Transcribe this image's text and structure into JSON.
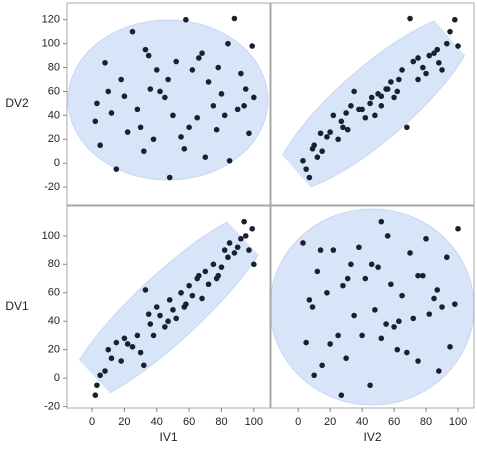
{
  "chart_data": [
    {
      "type": "scatter",
      "y_label": "DV2",
      "x": [
        3,
        5,
        8,
        10,
        12,
        15,
        18,
        20,
        22,
        25,
        28,
        30,
        32,
        35,
        36,
        38,
        40,
        42,
        45,
        48,
        50,
        52,
        55,
        58,
        60,
        62,
        65,
        68,
        70,
        72,
        75,
        78,
        80,
        82,
        84,
        85,
        88,
        90,
        92,
        95,
        97,
        99,
        100,
        2,
        33,
        47,
        57,
        66,
        77,
        94
      ],
      "y": [
        50,
        15,
        84,
        60,
        42,
        -5,
        70,
        56,
        26,
        110,
        45,
        30,
        10,
        90,
        62,
        20,
        78,
        60,
        55,
        -12,
        40,
        85,
        22,
        120,
        30,
        78,
        38,
        92,
        5,
        68,
        48,
        80,
        58,
        40,
        100,
        2,
        121,
        45,
        75,
        62,
        25,
        98,
        55,
        35,
        95,
        70,
        12,
        88,
        28,
        48
      ],
      "xlim": [
        -15.5,
        110
      ],
      "ylim": [
        -35,
        134
      ],
      "yticks": [
        -20,
        0,
        20,
        40,
        60,
        80,
        100,
        120
      ],
      "color": "#1b2030"
    },
    {
      "type": "scatter",
      "x": [
        45,
        10,
        88,
        62,
        30,
        5,
        75,
        52,
        20,
        95,
        40,
        68,
        15,
        82,
        55,
        25,
        90,
        35,
        60,
        7,
        48,
        72,
        18,
        98,
        28,
        65,
        42,
        85,
        12,
        58,
        33,
        78,
        50,
        22,
        93,
        3,
        70,
        38,
        80,
        56,
        14,
        100,
        46,
        27,
        87,
        63,
        9,
        75,
        31,
        52
      ],
      "y": [
        50,
        15,
        84,
        60,
        42,
        -5,
        70,
        56,
        26,
        110,
        45,
        30,
        10,
        90,
        62,
        20,
        78,
        60,
        55,
        -12,
        40,
        85,
        22,
        120,
        30,
        78,
        38,
        92,
        5,
        68,
        48,
        80,
        58,
        40,
        100,
        2,
        121,
        45,
        75,
        62,
        25,
        98,
        55,
        35,
        95,
        70,
        12,
        88,
        28,
        48
      ],
      "xlim": [
        -17,
        110
      ],
      "ylim": [
        -35,
        134
      ],
      "color": "#1b2030"
    },
    {
      "type": "scatter",
      "x_label": "IV1",
      "y_label": "DV1",
      "x": [
        3,
        5,
        8,
        10,
        12,
        15,
        18,
        20,
        22,
        25,
        28,
        30,
        32,
        35,
        36,
        38,
        40,
        42,
        45,
        48,
        50,
        52,
        55,
        58,
        60,
        62,
        65,
        68,
        70,
        72,
        75,
        78,
        80,
        82,
        84,
        85,
        88,
        90,
        92,
        95,
        97,
        99,
        100,
        2,
        33,
        47,
        57,
        66,
        77,
        94
      ],
      "y": [
        -5,
        2,
        5,
        20,
        14,
        25,
        12,
        28,
        24,
        22,
        30,
        18,
        9,
        45,
        38,
        30,
        50,
        44,
        36,
        55,
        48,
        42,
        60,
        52,
        65,
        58,
        70,
        56,
        75,
        66,
        80,
        72,
        78,
        90,
        85,
        95,
        88,
        92,
        98,
        100,
        90,
        105,
        80,
        -12,
        62,
        40,
        50,
        72,
        70,
        110
      ],
      "xlim": [
        -15.5,
        110
      ],
      "ylim": [
        -21,
        121
      ],
      "xticks": [
        0,
        20,
        40,
        60,
        80,
        100
      ],
      "yticks": [
        -20,
        0,
        20,
        40,
        60,
        80,
        100
      ],
      "color": "#1b2030"
    },
    {
      "type": "scatter",
      "x_label": "IV2",
      "x": [
        45,
        10,
        88,
        62,
        30,
        5,
        75,
        52,
        20,
        95,
        40,
        68,
        15,
        82,
        55,
        25,
        90,
        35,
        60,
        7,
        48,
        72,
        18,
        98,
        28,
        65,
        42,
        85,
        12,
        58,
        33,
        78,
        50,
        22,
        93,
        3,
        70,
        38,
        80,
        56,
        14,
        100,
        46,
        27,
        87,
        63,
        9,
        75,
        31,
        52
      ],
      "y": [
        -5,
        2,
        5,
        20,
        14,
        25,
        12,
        28,
        24,
        22,
        30,
        18,
        9,
        45,
        38,
        30,
        50,
        44,
        36,
        55,
        48,
        42,
        60,
        52,
        65,
        58,
        70,
        56,
        75,
        66,
        80,
        72,
        78,
        90,
        85,
        95,
        88,
        92,
        98,
        100,
        90,
        105,
        80,
        -12,
        62,
        40,
        50,
        72,
        70,
        110
      ],
      "xlim": [
        -17,
        110
      ],
      "ylim": [
        -21,
        121
      ],
      "xticks": [
        0,
        20,
        40,
        60,
        80,
        100
      ],
      "color": "#1b2030"
    }
  ]
}
